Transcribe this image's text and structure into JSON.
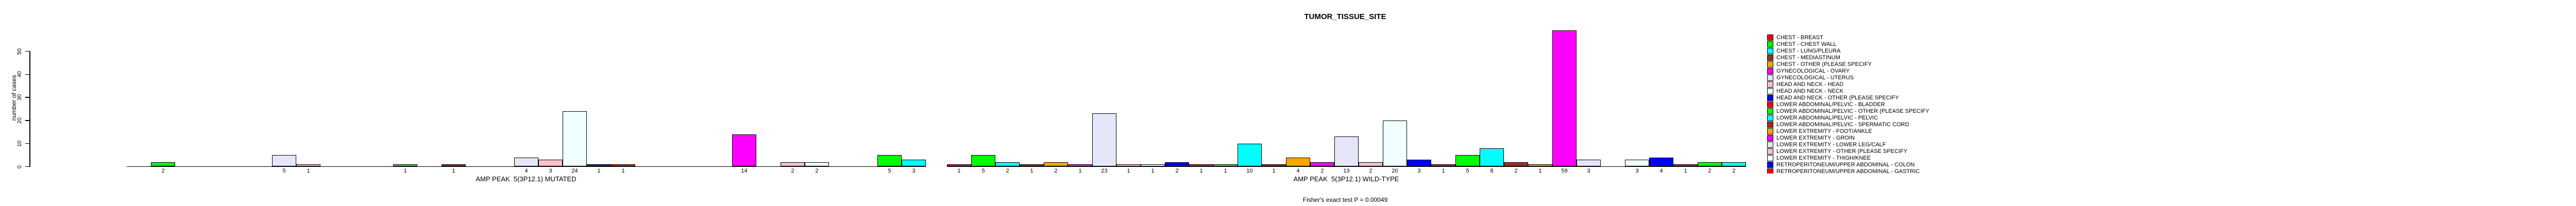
{
  "title": "TUMOR_TISSUE_SITE",
  "y_axis": {
    "label": "number of cases",
    "ticks": [
      0,
      10,
      20,
      30,
      40,
      50
    ]
  },
  "footnote": "Fisher's exact test P = 0.00049",
  "chart_data": {
    "type": "bar",
    "title": "TUMOR_TISSUE_SITE",
    "xlabel": "",
    "ylabel": "number of cases",
    "ylim": [
      0,
      50
    ],
    "grid": false,
    "legend_position": "right",
    "n_slots_per_group": 33,
    "palette_cycle": [
      "#FF0000",
      "#00FF00",
      "#00FFFF",
      "#A52A2A",
      "#FFA500",
      "#FF00FF",
      "#E6E6FA",
      "#FFC0CB",
      "#F0FFFF",
      "#0000FF"
    ],
    "groups": [
      {
        "label": "AMP PEAK  5(3P12.1) MUTATED",
        "bars": [
          {
            "slot": 2,
            "value": 2
          },
          {
            "slot": 7,
            "value": 5
          },
          {
            "slot": 8,
            "value": 1
          },
          {
            "slot": 12,
            "value": 1
          },
          {
            "slot": 14,
            "value": 1
          },
          {
            "slot": 17,
            "value": 4
          },
          {
            "slot": 18,
            "value": 3
          },
          {
            "slot": 19,
            "value": 24
          },
          {
            "slot": 20,
            "value": 1
          },
          {
            "slot": 21,
            "value": 1
          },
          {
            "slot": 26,
            "value": 14
          },
          {
            "slot": 28,
            "value": 2
          },
          {
            "slot": 29,
            "value": 2
          },
          {
            "slot": 32,
            "value": 5
          },
          {
            "slot": 33,
            "value": 3
          }
        ]
      },
      {
        "label": "AMP PEAK  5(3P12.1) WILD-TYPE",
        "bars": [
          {
            "slot": 1,
            "value": 1
          },
          {
            "slot": 2,
            "value": 5
          },
          {
            "slot": 3,
            "value": 2
          },
          {
            "slot": 4,
            "value": 1
          },
          {
            "slot": 5,
            "value": 2
          },
          {
            "slot": 6,
            "value": 1
          },
          {
            "slot": 7,
            "value": 23
          },
          {
            "slot": 8,
            "value": 1
          },
          {
            "slot": 9,
            "value": 1
          },
          {
            "slot": 10,
            "value": 2
          },
          {
            "slot": 11,
            "value": 1
          },
          {
            "slot": 12,
            "value": 1
          },
          {
            "slot": 13,
            "value": 10
          },
          {
            "slot": 14,
            "value": 1
          },
          {
            "slot": 15,
            "value": 4
          },
          {
            "slot": 16,
            "value": 2
          },
          {
            "slot": 17,
            "value": 13
          },
          {
            "slot": 18,
            "value": 2
          },
          {
            "slot": 19,
            "value": 20
          },
          {
            "slot": 20,
            "value": 3
          },
          {
            "slot": 21,
            "value": 1
          },
          {
            "slot": 22,
            "value": 5
          },
          {
            "slot": 23,
            "value": 8
          },
          {
            "slot": 24,
            "value": 2
          },
          {
            "slot": 25,
            "value": 1
          },
          {
            "slot": 26,
            "value": 59
          },
          {
            "slot": 27,
            "value": 3
          },
          {
            "slot": 29,
            "value": 3
          },
          {
            "slot": 30,
            "value": 4
          },
          {
            "slot": 31,
            "value": 1
          },
          {
            "slot": 32,
            "value": 2
          },
          {
            "slot": 33,
            "value": 2
          }
        ]
      }
    ],
    "annotation": "Fisher's exact test P = 0.00049"
  },
  "legend": {
    "items": [
      {
        "label": "CHEST - BREAST",
        "color": "#FF0000"
      },
      {
        "label": "CHEST - CHEST WALL",
        "color": "#00FF00"
      },
      {
        "label": "CHEST - LUNG/PLEURA",
        "color": "#00FFFF"
      },
      {
        "label": "CHEST - MEDIASTINUM",
        "color": "#A52A2A"
      },
      {
        "label": "CHEST - OTHER (PLEASE SPECIFY",
        "color": "#FFA500"
      },
      {
        "label": "GYNECOLOGICAL - OVARY",
        "color": "#FF00FF"
      },
      {
        "label": "GYNECOLOGICAL - UTERUS",
        "color": "#E6E6FA"
      },
      {
        "label": "HEAD AND NECK - HEAD",
        "color": "#FFC0CB"
      },
      {
        "label": "HEAD AND NECK - NECK",
        "color": "#F0FFFF"
      },
      {
        "label": "HEAD AND NECK - OTHER (PLEASE SPECIFY",
        "color": "#0000FF"
      },
      {
        "label": "LOWER ABDOMINAL/PELVIC - BLADDER",
        "color": "#FF0000"
      },
      {
        "label": "LOWER ABDOMINAL/PELVIC - OTHER (PLEASE SPECIFY",
        "color": "#00FF00"
      },
      {
        "label": "LOWER ABDOMINAL/PELVIC - PELVIC",
        "color": "#00FFFF"
      },
      {
        "label": "LOWER ABDOMINAL/PELVIC - SPERMATIC CORD",
        "color": "#A52A2A"
      },
      {
        "label": "LOWER EXTREMITY - FOOT/ANKLE",
        "color": "#FFA500"
      },
      {
        "label": "LOWER EXTREMITY - GROIN",
        "color": "#FF00FF"
      },
      {
        "label": "LOWER EXTREMITY - LOWER LEG/CALF",
        "color": "#E6E6FA"
      },
      {
        "label": "LOWER EXTREMITY - OTHER (PLEASE SPECIFY",
        "color": "#FFC0CB"
      },
      {
        "label": "LOWER EXTREMITY - THIGH/KNEE",
        "color": "#F0FFFF"
      },
      {
        "label": "RETROPERITONEUM/UPPER ABDOMINAL - COLON",
        "color": "#0000FF"
      },
      {
        "label": "RETROPERITONEUM/UPPER ABDOMINAL - GASTRIC",
        "color": "#FF0000"
      }
    ]
  }
}
